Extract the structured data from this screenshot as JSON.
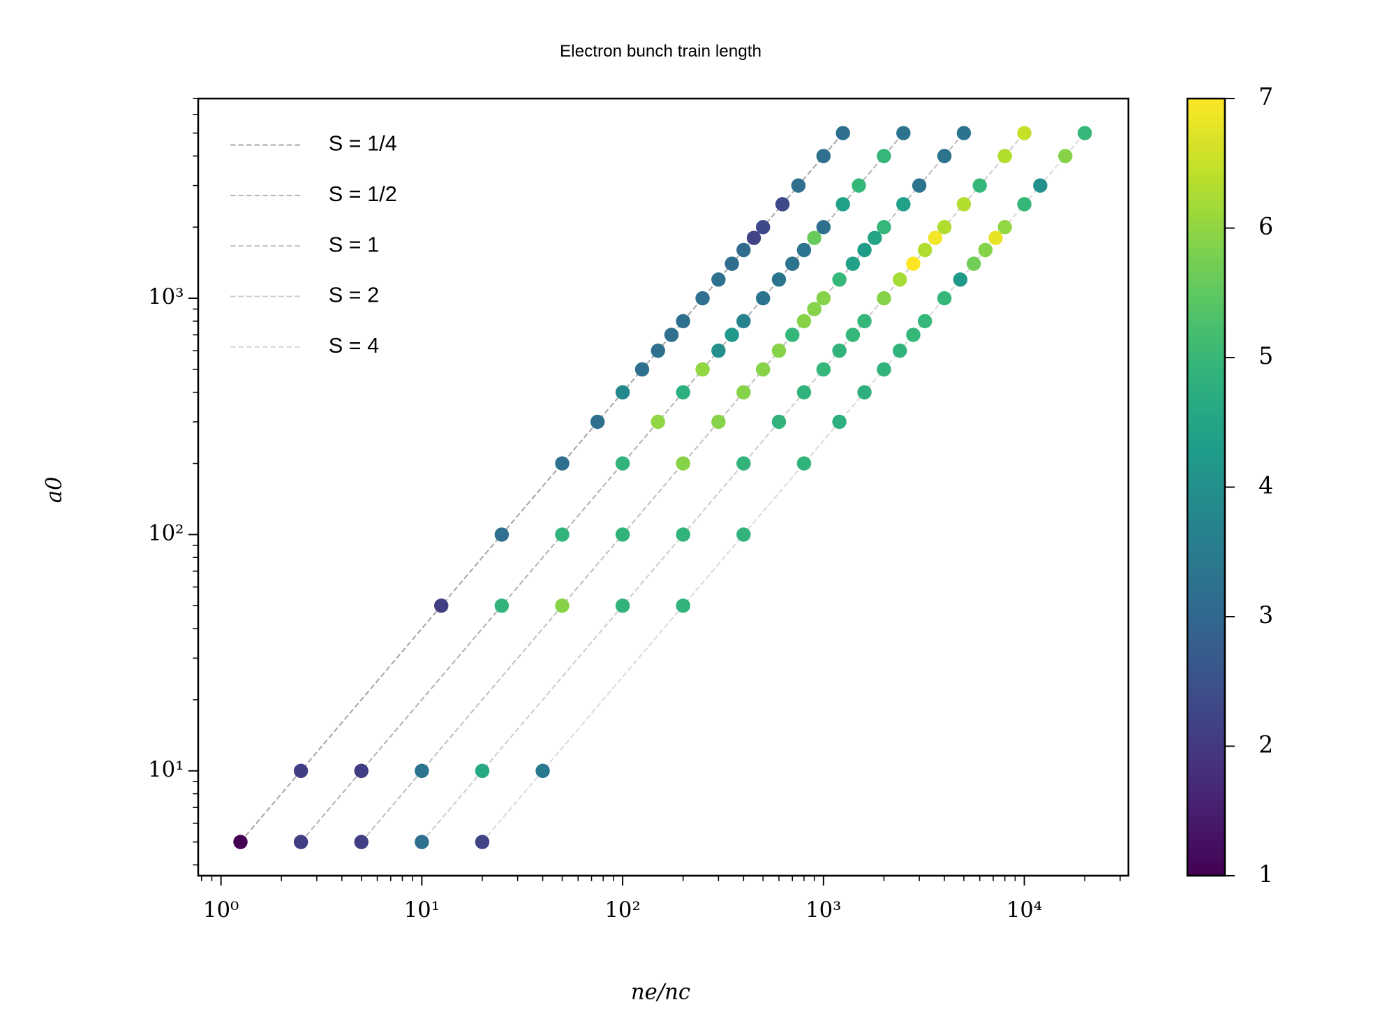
{
  "chart_data": {
    "type": "scatter",
    "title": "Electron bunch train length",
    "xlabel": "ne/nc",
    "ylabel": "a0",
    "xlog": true,
    "ylog": true,
    "xlim": [
      0.77,
      33000
    ],
    "ylim": [
      3.6,
      7000
    ],
    "xticks": [
      {
        "value": 1,
        "label": "10⁰"
      },
      {
        "value": 10,
        "label": "10¹"
      },
      {
        "value": 100,
        "label": "10²"
      },
      {
        "value": 1000,
        "label": "10³"
      },
      {
        "value": 10000,
        "label": "10⁴"
      }
    ],
    "yticks": [
      {
        "value": 10,
        "label": "10¹"
      },
      {
        "value": 100,
        "label": "10²"
      },
      {
        "value": 1000,
        "label": "10³"
      }
    ],
    "colormap": "viridis",
    "clim": [
      1,
      7
    ],
    "cticks": [
      1,
      2,
      3,
      4,
      5,
      6,
      7
    ],
    "legend_loc": "upper left",
    "lines": [
      {
        "name": "S = 1/4",
        "color": "#a6a6a6",
        "x": [
          1.25,
          1250
        ],
        "values": [
          5,
          5000
        ]
      },
      {
        "name": "S = 1/2",
        "color": "#b3b3b3",
        "x": [
          2.5,
          2500
        ],
        "values": [
          5,
          5000
        ]
      },
      {
        "name": "S = 1",
        "color": "#c0c0c0",
        "x": [
          5,
          5000
        ],
        "values": [
          5,
          5000
        ]
      },
      {
        "name": "S = 2",
        "color": "#cdcdcd",
        "x": [
          10,
          10000
        ],
        "values": [
          5,
          5000
        ]
      },
      {
        "name": "S = 4",
        "color": "#dadada",
        "x": [
          20,
          20000
        ],
        "values": [
          5,
          5000
        ]
      }
    ],
    "points": {
      "x": [
        1.25,
        2.5,
        12.5,
        25,
        50,
        75,
        100,
        125,
        150,
        175,
        200,
        250,
        300,
        350,
        400,
        450,
        500,
        625,
        750,
        1000,
        1250,
        2.5,
        5,
        25,
        50,
        100,
        150,
        200,
        250,
        300,
        350,
        400,
        500,
        600,
        700,
        800,
        900,
        1000,
        1250,
        1500,
        2000,
        2500,
        5,
        10,
        50,
        100,
        200,
        300,
        400,
        500,
        600,
        700,
        800,
        900,
        1000,
        1200,
        1400,
        1600,
        1800,
        2000,
        2500,
        3000,
        4000,
        5000,
        10,
        20,
        100,
        200,
        400,
        600,
        800,
        1000,
        1200,
        1400,
        1600,
        2000,
        2400,
        2800,
        3200,
        3600,
        4000,
        5000,
        6000,
        8000,
        10000,
        20,
        40,
        200,
        400,
        800,
        1200,
        1600,
        2000,
        2400,
        2800,
        3200,
        4000,
        4800,
        5600,
        6400,
        7200,
        8000,
        10000,
        12000,
        16000,
        20000
      ],
      "values": [
        5,
        10,
        50,
        100,
        200,
        300,
        400,
        500,
        600,
        700,
        800,
        1000,
        1200,
        1400,
        1600,
        1800,
        2000,
        2500,
        3000,
        4000,
        5000,
        5,
        10,
        50,
        100,
        200,
        300,
        400,
        500,
        600,
        700,
        800,
        1000,
        1200,
        1400,
        1600,
        1800,
        2000,
        2500,
        3000,
        4000,
        5000,
        5,
        10,
        50,
        100,
        200,
        300,
        400,
        500,
        600,
        700,
        800,
        900,
        1000,
        1200,
        1400,
        1600,
        1800,
        2000,
        2500,
        3000,
        4000,
        5000,
        5,
        10,
        50,
        100,
        200,
        300,
        400,
        500,
        600,
        700,
        800,
        1000,
        1200,
        1400,
        1600,
        1800,
        2000,
        2500,
        3000,
        4000,
        5000,
        5,
        10,
        50,
        100,
        200,
        300,
        400,
        500,
        600,
        700,
        800,
        1000,
        1200,
        1400,
        1600,
        1800,
        2000,
        2500,
        3000,
        4000,
        5000
      ],
      "c": [
        1.0,
        2.1,
        2.1,
        3.2,
        3.2,
        3.2,
        3.8,
        3.2,
        3.2,
        3.2,
        3.2,
        3.2,
        3.2,
        3.1,
        3.1,
        2.2,
        2.3,
        2.3,
        3.2,
        3.2,
        3.2,
        2.1,
        2.1,
        4.9,
        4.9,
        4.9,
        6.0,
        4.8,
        6.0,
        4.0,
        4.2,
        3.7,
        3.3,
        3.3,
        3.3,
        3.3,
        5.6,
        3.2,
        4.4,
        5.0,
        5.0,
        3.3,
        2.1,
        3.3,
        5.9,
        4.9,
        5.9,
        5.9,
        5.9,
        5.9,
        5.9,
        5.0,
        5.9,
        5.9,
        5.9,
        5.0,
        4.4,
        4.3,
        4.5,
        5.0,
        4.4,
        3.3,
        3.3,
        3.3,
        3.2,
        4.6,
        4.9,
        4.9,
        4.9,
        4.9,
        4.9,
        5.0,
        4.9,
        5.0,
        5.0,
        5.9,
        6.2,
        7.0,
        6.3,
        6.9,
        6.3,
        6.3,
        5.0,
        6.3,
        6.5,
        2.2,
        3.4,
        4.9,
        4.9,
        4.9,
        4.8,
        4.8,
        4.9,
        4.9,
        5.0,
        5.0,
        5.0,
        4.2,
        5.7,
        5.9,
        6.8,
        6.0,
        5.0,
        4.0,
        5.9,
        5.0
      ]
    }
  }
}
